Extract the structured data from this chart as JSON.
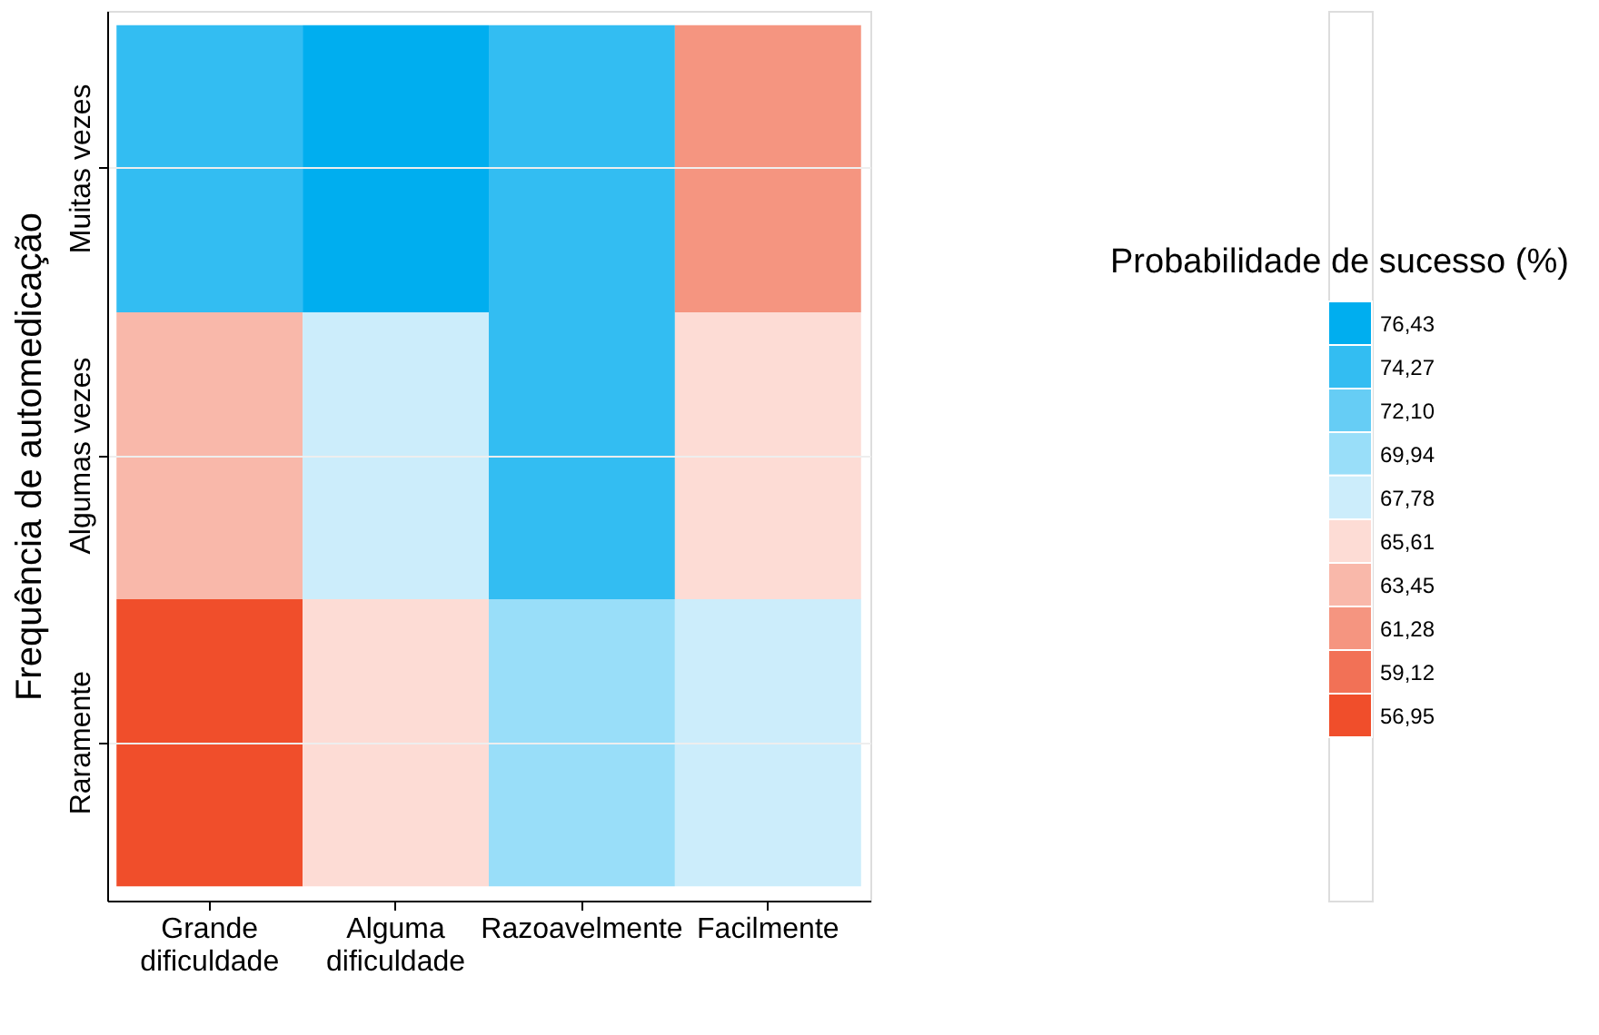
{
  "chart_data": {
    "type": "heatmap",
    "ylabel": "Frequência de automedicação",
    "clabel": "Probabilidade de sucesso (%)",
    "categories": [
      "Grande dificuldade",
      "Alguma dificuldade",
      "Razoavelmente",
      "Facilmente"
    ],
    "y_categories": [
      "Muitas vezes",
      "Algumas vezes",
      "Raramente"
    ],
    "cells": [
      [
        74.27,
        76.43,
        74.27,
        61.28
      ],
      [
        63.45,
        67.78,
        74.27,
        65.61
      ],
      [
        56.95,
        65.61,
        69.94,
        67.78
      ]
    ],
    "cticks": [
      {
        "value": 76.43,
        "label": "76,43"
      },
      {
        "value": 74.27,
        "label": "74,27"
      },
      {
        "value": 72.1,
        "label": "72,10"
      },
      {
        "value": 69.94,
        "label": "69,94"
      },
      {
        "value": 67.78,
        "label": "67,78"
      },
      {
        "value": 65.61,
        "label": "65,61"
      },
      {
        "value": 63.45,
        "label": "63,45"
      },
      {
        "value": 61.28,
        "label": "61,28"
      },
      {
        "value": 59.12,
        "label": "59,12"
      },
      {
        "value": 56.95,
        "label": "56,95"
      }
    ],
    "colors": [
      "#00aeef",
      "#33bdf2",
      "#66cdf5",
      "#99def9",
      "#ccedfb",
      "#fddcd5",
      "#f9b8aa",
      "#f59580",
      "#f27156",
      "#f04e2b"
    ],
    "clim": [
      55.87,
      77.51
    ],
    "grid": "y"
  }
}
